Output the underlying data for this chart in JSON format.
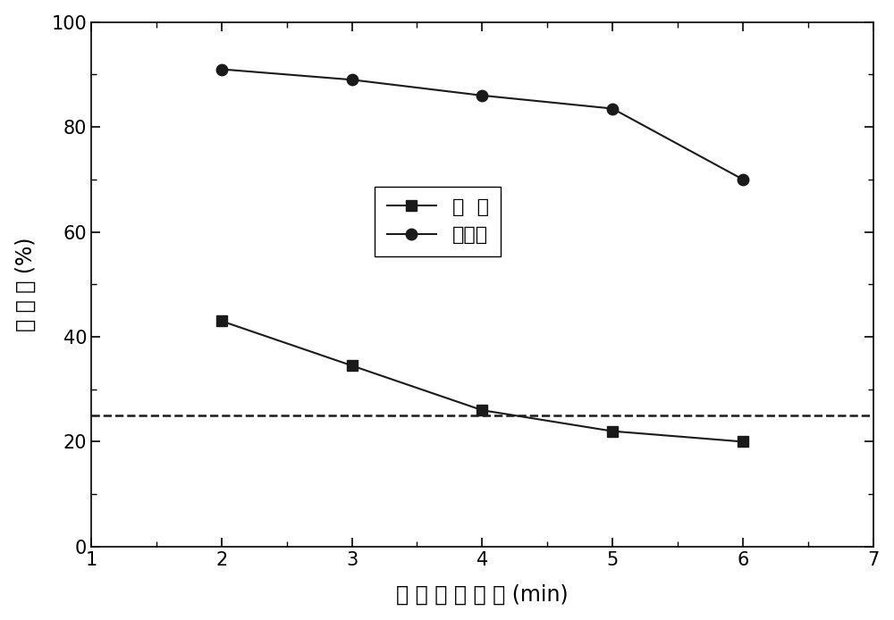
{
  "x": [
    2,
    3,
    4,
    5,
    6
  ],
  "arsenopyrite_y": [
    43,
    34.5,
    26,
    22,
    20
  ],
  "pyrite_y": [
    91,
    89,
    86,
    83.5,
    70
  ],
  "dashed_line_y": 25,
  "xlim": [
    1,
    7
  ],
  "ylim": [
    0,
    100
  ],
  "xticks": [
    1,
    2,
    3,
    4,
    5,
    6,
    7
  ],
  "yticks": [
    0,
    20,
    40,
    60,
    80,
    100
  ],
  "xlabel": "细 菌 作 用 时 间 (min)",
  "ylabel": "回 收 率 (%)",
  "legend_arsenopyrite": "毒  砂",
  "legend_pyrite": "黄铁矿",
  "line_color": "#1a1a1a",
  "background_color": "#ffffff",
  "marker_size": 9,
  "linewidth": 1.5,
  "font_size_labels": 17,
  "font_size_ticks": 15,
  "font_size_legend": 16,
  "dashed_line_color": "#1a1a1a"
}
